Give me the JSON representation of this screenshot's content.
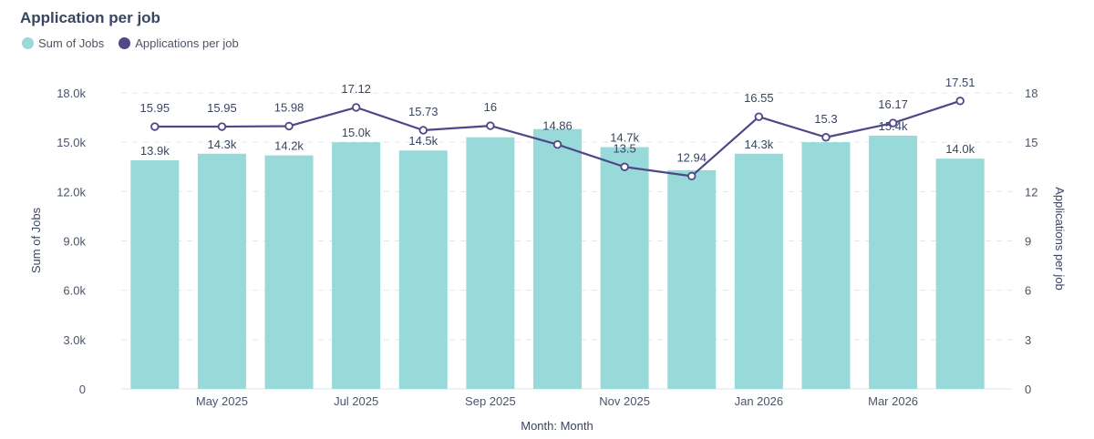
{
  "title": "Application per job",
  "colors": {
    "bar": "#98D9D9",
    "line": "#4F4787",
    "grid": "#E3E5EA"
  },
  "chart_data": {
    "type": "bar+line",
    "title": "Application per job",
    "xlabel": "Month: Month",
    "ylabel_left": "Sum of Jobs",
    "ylabel_right": "Applications per job",
    "categories": [
      "Apr 2025",
      "May 2025",
      "Jun 2025",
      "Jul 2025",
      "Aug 2025",
      "Sep 2025",
      "Oct 2025",
      "Nov 2025",
      "Dec 2025",
      "Jan 2026",
      "Feb 2026",
      "Mar 2026",
      "Apr 2026"
    ],
    "x_tick_labels": [
      "May 2025",
      "Jul 2025",
      "Sep 2025",
      "Nov 2025",
      "Jan 2026",
      "Mar 2026"
    ],
    "y_left_ticks": [
      "0",
      "3.0k",
      "6.0k",
      "9.0k",
      "12.0k",
      "15.0k",
      "18.0k"
    ],
    "y_right_ticks": [
      "0",
      "3",
      "6",
      "9",
      "12",
      "15",
      "18"
    ],
    "ylim_left": [
      0,
      18000
    ],
    "ylim_right": [
      0,
      18
    ],
    "grid": true,
    "legend_position": "top-left",
    "series": [
      {
        "name": "Sum of Jobs",
        "type": "bar",
        "axis": "left",
        "values": [
          13900,
          14300,
          14200,
          15000,
          14500,
          15300,
          15800,
          14700,
          13300,
          14300,
          15000,
          15400,
          14000
        ],
        "labels": [
          "13.9k",
          "14.3k",
          "14.2k",
          "15.0k",
          "14.5k",
          "",
          "",
          "14.7k",
          "",
          "14.3k",
          "",
          "15.4k",
          "14.0k"
        ]
      },
      {
        "name": "Applications per job",
        "type": "line",
        "axis": "right",
        "values": [
          15.95,
          15.95,
          15.98,
          17.12,
          15.73,
          16,
          14.86,
          13.5,
          12.94,
          16.55,
          15.3,
          16.17,
          17.51
        ],
        "labels": [
          "15.95",
          "15.95",
          "15.98",
          "17.12",
          "15.73",
          "16",
          "14.86",
          "13.5",
          "12.94",
          "16.55",
          "15.3",
          "16.17",
          "17.51"
        ]
      }
    ]
  }
}
